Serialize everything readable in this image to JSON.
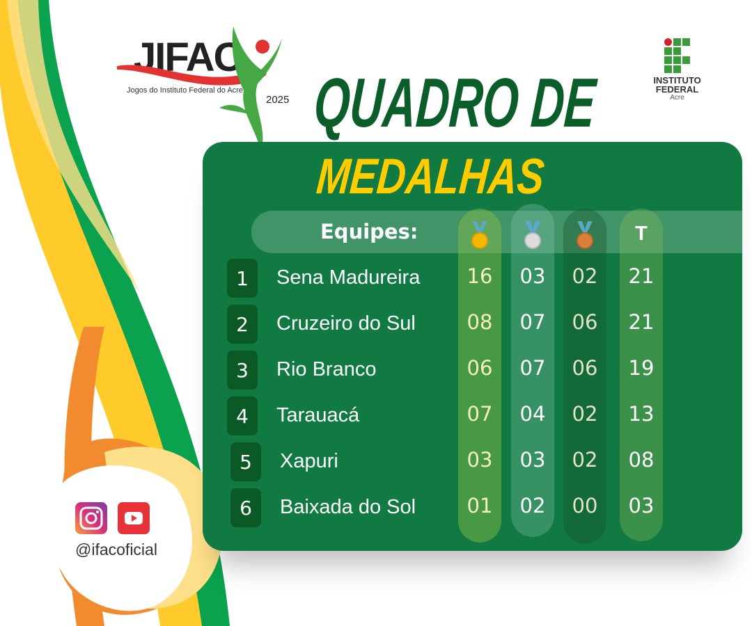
{
  "logo": {
    "text": "JIFAC",
    "subtitle": "Jogos do Instituto Federal do Acre",
    "year": "2025"
  },
  "institution": {
    "line1": "INSTITUTO",
    "line2": "FEDERAL",
    "line3": "Acre"
  },
  "title": {
    "line1": "QUADRO DE",
    "line2": "MEDALHAS"
  },
  "table": {
    "header": {
      "teams": "Equipes:",
      "gold": "gold-medal-icon",
      "silver": "silver-medal-icon",
      "bronze": "bronze-medal-icon",
      "total": "T"
    },
    "rows": [
      {
        "rank": "1",
        "team": "Sena Madureira",
        "gold": "16",
        "silver": "03",
        "bronze": "02",
        "total": "21"
      },
      {
        "rank": "2",
        "team": "Cruzeiro do Sul",
        "gold": "08",
        "silver": "07",
        "bronze": "06",
        "total": "21"
      },
      {
        "rank": "3",
        "team": "Rio Branco",
        "gold": "06",
        "silver": "07",
        "bronze": "06",
        "total": "19"
      },
      {
        "rank": "4",
        "team": "Tarauacá",
        "gold": "07",
        "silver": "04",
        "bronze": "02",
        "total": "13"
      },
      {
        "rank": "5",
        "team": "Xapuri",
        "gold": "03",
        "silver": "03",
        "bronze": "02",
        "total": "08"
      },
      {
        "rank": "6",
        "team": "Baixada do Sol",
        "gold": "01",
        "silver": "02",
        "bronze": "00",
        "total": "03"
      }
    ]
  },
  "social": {
    "icons": [
      "instagram-icon",
      "youtube-icon"
    ],
    "handle": "@ifacoficial"
  },
  "colors": {
    "panel": "#117a43",
    "title_green": "#0b5e2a",
    "title_yellow": "#ffcc00",
    "gold": "#f5b800",
    "silver": "#d0d0d0",
    "bronze": "#d9803a"
  }
}
